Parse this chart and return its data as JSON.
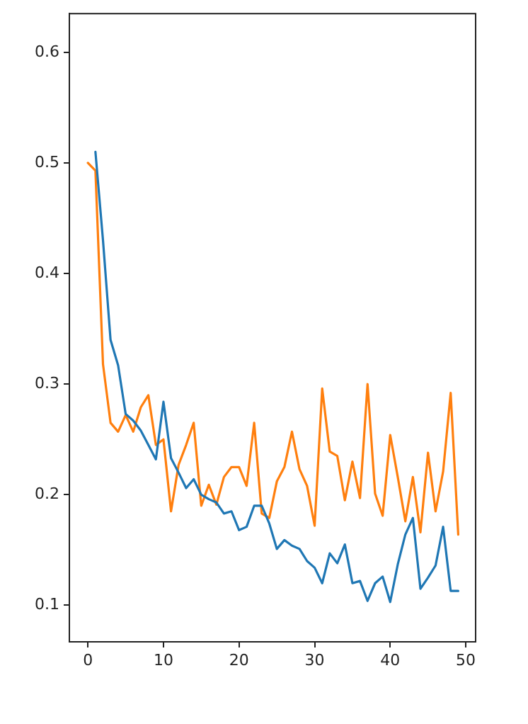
{
  "chart_data": {
    "type": "line",
    "x": [
      0,
      1,
      2,
      3,
      4,
      5,
      6,
      7,
      8,
      9,
      10,
      11,
      12,
      13,
      14,
      15,
      16,
      17,
      18,
      19,
      20,
      21,
      22,
      23,
      24,
      25,
      26,
      27,
      28,
      29,
      30,
      31,
      32,
      33,
      34,
      35,
      36,
      37,
      38,
      39,
      40,
      41,
      42,
      43,
      44,
      45,
      46,
      47,
      48,
      49
    ],
    "series": [
      {
        "color": "#1f77b4",
        "values": [
          null,
          0.51,
          0.43,
          0.34,
          0.317,
          0.273,
          0.267,
          0.258,
          0.245,
          0.232,
          0.284,
          0.233,
          0.22,
          0.206,
          0.214,
          0.2,
          0.196,
          0.193,
          0.183,
          0.185,
          0.168,
          0.171,
          0.19,
          0.19,
          0.174,
          0.151,
          0.159,
          0.154,
          0.151,
          0.14,
          0.134,
          0.12,
          0.147,
          0.138,
          0.155,
          0.12,
          0.122,
          0.104,
          0.12,
          0.126,
          0.103,
          0.137,
          0.164,
          0.179,
          0.115,
          0.125,
          0.136,
          0.171,
          0.113,
          0.113
        ]
      },
      {
        "color": "#ff7f0e",
        "values": [
          0.5,
          0.493,
          0.318,
          0.265,
          0.257,
          0.272,
          0.257,
          0.279,
          0.29,
          0.245,
          0.25,
          0.185,
          0.227,
          0.245,
          0.265,
          0.19,
          0.209,
          0.191,
          0.216,
          0.225,
          0.225,
          0.208,
          0.265,
          0.183,
          0.179,
          0.212,
          0.225,
          0.257,
          0.223,
          0.208,
          0.172,
          0.296,
          0.239,
          0.235,
          0.195,
          0.23,
          0.197,
          0.3,
          0.201,
          0.181,
          0.254,
          0.216,
          0.176,
          0.216,
          0.166,
          0.238,
          0.185,
          0.221,
          0.292,
          0.164
        ]
      }
    ],
    "xlim": [
      -2.45,
      51.3
    ],
    "xticks": [
      0,
      10,
      20,
      30,
      40,
      50
    ],
    "ylim": [
      0.067,
      0.635
    ],
    "yticks": [
      0.1,
      0.2,
      0.3,
      0.4,
      0.5,
      0.6
    ],
    "grid": false,
    "legend": false,
    "marker": "none",
    "line_style": "solid"
  }
}
